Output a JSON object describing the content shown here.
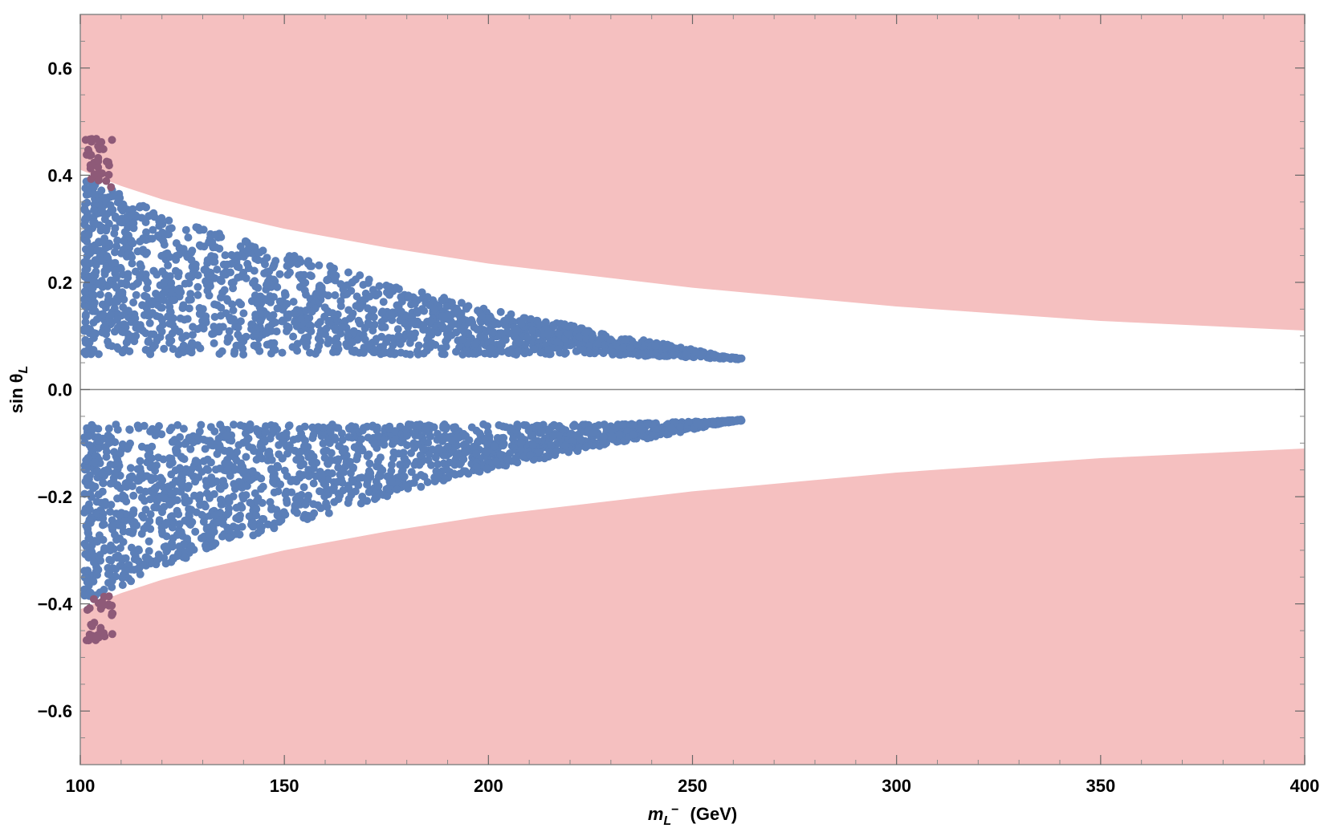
{
  "chart_data": {
    "type": "scatter",
    "xlabel": {
      "main": "m",
      "sub": "L",
      "sup": "−",
      "unit": "(GeV)"
    },
    "ylabel": {
      "main": "sin θ",
      "sub": "L"
    },
    "xlim": [
      100,
      400
    ],
    "ylim": [
      -0.7,
      0.7
    ],
    "x_ticks": [
      100,
      150,
      200,
      250,
      300,
      350,
      400
    ],
    "x_tick_labels": [
      "100",
      "150",
      "200",
      "250",
      "300",
      "350",
      "400"
    ],
    "y_ticks": [
      -0.6,
      -0.4,
      -0.2,
      0.0,
      0.2,
      0.4,
      0.6
    ],
    "y_tick_labels": [
      "−0.6",
      "−0.4",
      "−0.2",
      "0.0",
      "0.2",
      "0.4",
      "0.6"
    ],
    "grid": false,
    "zero_line": true,
    "excluded_region_boundary": {
      "description_color": "#f5c0c0",
      "x": [
        100,
        110,
        120,
        130,
        150,
        175,
        200,
        250,
        300,
        350,
        400
      ],
      "upper_y": [
        0.41,
        0.38,
        0.355,
        0.335,
        0.3,
        0.265,
        0.235,
        0.19,
        0.155,
        0.128,
        0.11
      ],
      "lower_y": [
        -0.41,
        -0.38,
        -0.355,
        -0.335,
        -0.3,
        -0.265,
        -0.235,
        -0.19,
        -0.155,
        -0.128,
        -0.11
      ]
    },
    "allowed_points": {
      "color": "#5b7fb8",
      "envelope_x": [
        100,
        110,
        120,
        130,
        140,
        150,
        160,
        170,
        180,
        190,
        200,
        210,
        220,
        230,
        240,
        250,
        256,
        262
      ],
      "envelope_upper": [
        0.4,
        0.37,
        0.33,
        0.305,
        0.28,
        0.255,
        0.235,
        0.21,
        0.19,
        0.17,
        0.15,
        0.135,
        0.12,
        0.1,
        0.09,
        0.075,
        0.065,
        0.058
      ],
      "envelope_lower": [
        0.065,
        0.065,
        0.065,
        0.065,
        0.065,
        0.065,
        0.065,
        0.065,
        0.065,
        0.065,
        0.065,
        0.065,
        0.065,
        0.065,
        0.062,
        0.06,
        0.058,
        0.056
      ]
    },
    "excluded_points": {
      "color": "#8e5a78",
      "x_range": [
        101,
        108
      ],
      "y_abs_range": [
        0.39,
        0.47
      ]
    }
  }
}
